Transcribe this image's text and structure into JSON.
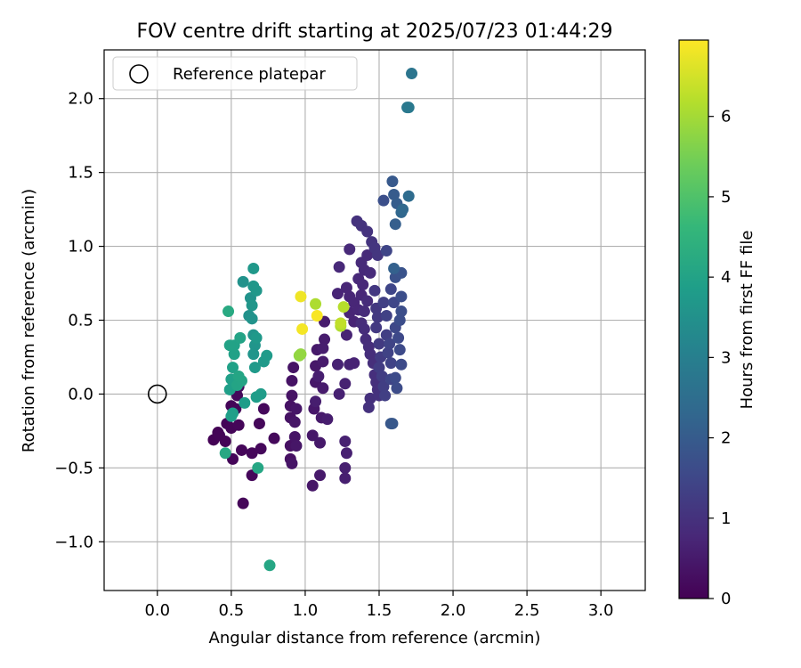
{
  "chart_data": {
    "type": "scatter",
    "title": "FOV centre drift starting at 2025/07/23 01:44:29",
    "xlabel": "Angular distance from reference (arcmin)",
    "ylabel": "Rotation from reference (arcmin)",
    "xlim": [
      -0.36,
      3.3
    ],
    "ylim": [
      -1.33,
      2.33
    ],
    "xticks": [
      0.0,
      0.5,
      1.0,
      1.5,
      2.0,
      2.5,
      3.0
    ],
    "xtick_labels": [
      "0.0",
      "0.5",
      "1.0",
      "1.5",
      "2.0",
      "2.5",
      "3.0"
    ],
    "yticks": [
      -1.0,
      -0.5,
      0.0,
      0.5,
      1.0,
      1.5,
      2.0
    ],
    "ytick_labels": [
      "−1.0",
      "−0.5",
      "0.0",
      "0.5",
      "1.0",
      "1.5",
      "2.0"
    ],
    "grid": true,
    "legend": {
      "placement": "upper-left",
      "entries": [
        "Reference platepar"
      ]
    },
    "reference_point": {
      "x": 0.0,
      "y": 0.0
    },
    "colorbar": {
      "label": "Hours from first FF file",
      "range": [
        0,
        6.95
      ],
      "ticks": [
        0,
        1,
        2,
        3,
        4,
        5,
        6
      ],
      "tick_labels": [
        "0",
        "1",
        "2",
        "3",
        "4",
        "5",
        "6"
      ],
      "colormap": "viridis"
    },
    "points": [
      {
        "x": 0.38,
        "y": -0.31,
        "h": 0.02
      },
      {
        "x": 0.41,
        "y": -0.26,
        "h": 0.03
      },
      {
        "x": 0.42,
        "y": -0.28,
        "h": 0.05
      },
      {
        "x": 0.46,
        "y": -0.32,
        "h": 0.05
      },
      {
        "x": 0.47,
        "y": -0.2,
        "h": 0.06
      },
      {
        "x": 0.5,
        "y": -0.23,
        "h": 0.07
      },
      {
        "x": 0.51,
        "y": -0.44,
        "h": 0.08
      },
      {
        "x": 0.5,
        "y": -0.08,
        "h": 0.08
      },
      {
        "x": 0.53,
        "y": -0.1,
        "h": 0.09
      },
      {
        "x": 0.55,
        "y": -0.21,
        "h": 0.1
      },
      {
        "x": 0.57,
        "y": -0.38,
        "h": 0.1
      },
      {
        "x": 0.58,
        "y": -0.74,
        "h": 0.11
      },
      {
        "x": 0.64,
        "y": -0.55,
        "h": 0.12
      },
      {
        "x": 0.64,
        "y": -0.4,
        "h": 0.12
      },
      {
        "x": 0.69,
        "y": -0.2,
        "h": 0.13
      },
      {
        "x": 0.7,
        "y": -0.37,
        "h": 0.14
      },
      {
        "x": 0.72,
        "y": -0.1,
        "h": 0.14
      },
      {
        "x": 0.79,
        "y": -0.3,
        "h": 0.15
      },
      {
        "x": 0.54,
        "y": -0.01,
        "h": 0.16
      },
      {
        "x": 0.55,
        "y": 0.05,
        "h": 0.16
      },
      {
        "x": 0.9,
        "y": -0.44,
        "h": 0.3
      },
      {
        "x": 0.9,
        "y": -0.35,
        "h": 0.32
      },
      {
        "x": 0.9,
        "y": -0.16,
        "h": 0.33
      },
      {
        "x": 0.9,
        "y": -0.08,
        "h": 0.34
      },
      {
        "x": 0.91,
        "y": -0.01,
        "h": 0.35
      },
      {
        "x": 0.91,
        "y": 0.09,
        "h": 0.36
      },
      {
        "x": 0.92,
        "y": 0.18,
        "h": 0.37
      },
      {
        "x": 0.91,
        "y": -0.47,
        "h": 0.38
      },
      {
        "x": 0.93,
        "y": -0.29,
        "h": 0.38
      },
      {
        "x": 0.93,
        "y": -0.19,
        "h": 0.39
      },
      {
        "x": 0.94,
        "y": -0.1,
        "h": 0.4
      },
      {
        "x": 0.94,
        "y": -0.35,
        "h": 0.41
      },
      {
        "x": 1.05,
        "y": -0.62,
        "h": 0.42
      },
      {
        "x": 1.05,
        "y": -0.28,
        "h": 0.43
      },
      {
        "x": 1.06,
        "y": -0.1,
        "h": 0.44
      },
      {
        "x": 1.07,
        "y": 0.08,
        "h": 0.45
      },
      {
        "x": 1.07,
        "y": 0.19,
        "h": 0.46
      },
      {
        "x": 1.08,
        "y": 0.3,
        "h": 0.47
      },
      {
        "x": 1.1,
        "y": -0.33,
        "h": 0.48
      },
      {
        "x": 1.1,
        "y": -0.55,
        "h": 0.49
      },
      {
        "x": 1.11,
        "y": -0.16,
        "h": 0.5
      },
      {
        "x": 1.12,
        "y": 0.04,
        "h": 0.51
      },
      {
        "x": 1.12,
        "y": 0.22,
        "h": 0.52
      },
      {
        "x": 1.13,
        "y": 0.37,
        "h": 0.53
      },
      {
        "x": 1.13,
        "y": 0.49,
        "h": 0.54
      },
      {
        "x": 1.15,
        "y": -0.17,
        "h": 0.55
      },
      {
        "x": 1.12,
        "y": 0.31,
        "h": 0.56
      },
      {
        "x": 1.07,
        "y": -0.05,
        "h": 0.57
      },
      {
        "x": 1.09,
        "y": 0.12,
        "h": 0.58
      },
      {
        "x": 1.27,
        "y": -0.57,
        "h": 0.6
      },
      {
        "x": 1.27,
        "y": -0.5,
        "h": 0.61
      },
      {
        "x": 1.28,
        "y": -0.4,
        "h": 0.62
      },
      {
        "x": 1.27,
        "y": -0.32,
        "h": 0.63
      },
      {
        "x": 1.23,
        "y": 0.0,
        "h": 0.64
      },
      {
        "x": 1.27,
        "y": 0.07,
        "h": 0.65
      },
      {
        "x": 1.22,
        "y": 0.2,
        "h": 0.66
      },
      {
        "x": 1.3,
        "y": 0.2,
        "h": 0.67
      },
      {
        "x": 1.33,
        "y": 0.21,
        "h": 0.68
      },
      {
        "x": 1.28,
        "y": 0.4,
        "h": 0.69
      },
      {
        "x": 1.33,
        "y": 0.49,
        "h": 0.7
      },
      {
        "x": 1.3,
        "y": 0.55,
        "h": 0.71
      },
      {
        "x": 1.22,
        "y": 0.68,
        "h": 0.72
      },
      {
        "x": 1.28,
        "y": 0.72,
        "h": 0.73
      },
      {
        "x": 1.3,
        "y": 0.66,
        "h": 0.74
      },
      {
        "x": 1.33,
        "y": 0.62,
        "h": 0.75
      },
      {
        "x": 1.36,
        "y": 0.57,
        "h": 0.76
      },
      {
        "x": 1.38,
        "y": 0.67,
        "h": 0.77
      },
      {
        "x": 1.39,
        "y": 0.74,
        "h": 0.78
      },
      {
        "x": 1.36,
        "y": 0.78,
        "h": 0.79
      },
      {
        "x": 1.23,
        "y": 0.86,
        "h": 0.8
      },
      {
        "x": 1.3,
        "y": 0.98,
        "h": 0.81
      },
      {
        "x": 1.38,
        "y": 0.89,
        "h": 0.82
      },
      {
        "x": 1.4,
        "y": 0.84,
        "h": 0.83
      },
      {
        "x": 1.42,
        "y": 0.94,
        "h": 0.84
      },
      {
        "x": 1.44,
        "y": 0.82,
        "h": 0.85
      },
      {
        "x": 1.42,
        "y": 0.63,
        "h": 0.86
      },
      {
        "x": 1.4,
        "y": 0.56,
        "h": 0.87
      },
      {
        "x": 1.38,
        "y": 0.48,
        "h": 0.88
      },
      {
        "x": 1.4,
        "y": 0.44,
        "h": 0.89
      },
      {
        "x": 1.41,
        "y": 0.37,
        "h": 0.9
      },
      {
        "x": 1.43,
        "y": 0.32,
        "h": 0.91
      },
      {
        "x": 1.44,
        "y": 0.27,
        "h": 0.92
      },
      {
        "x": 1.46,
        "y": 0.21,
        "h": 0.93
      },
      {
        "x": 1.47,
        "y": 0.13,
        "h": 0.94
      },
      {
        "x": 1.48,
        "y": 0.08,
        "h": 0.95
      },
      {
        "x": 1.49,
        "y": 0.03,
        "h": 0.96
      },
      {
        "x": 1.44,
        "y": -0.03,
        "h": 0.97
      },
      {
        "x": 1.43,
        "y": -0.09,
        "h": 0.98
      },
      {
        "x": 1.5,
        "y": -0.01,
        "h": 0.99
      },
      {
        "x": 1.35,
        "y": 1.17,
        "h": 1.0
      },
      {
        "x": 1.38,
        "y": 1.14,
        "h": 1.02
      },
      {
        "x": 1.42,
        "y": 1.1,
        "h": 1.04
      },
      {
        "x": 1.45,
        "y": 1.03,
        "h": 1.06
      },
      {
        "x": 1.47,
        "y": 0.99,
        "h": 1.08
      },
      {
        "x": 1.49,
        "y": 0.94,
        "h": 1.1
      },
      {
        "x": 1.47,
        "y": 0.7,
        "h": 1.12
      },
      {
        "x": 1.48,
        "y": 0.58,
        "h": 1.14
      },
      {
        "x": 1.49,
        "y": 0.52,
        "h": 1.16
      },
      {
        "x": 1.48,
        "y": 0.45,
        "h": 1.18
      },
      {
        "x": 1.5,
        "y": 0.34,
        "h": 1.2
      },
      {
        "x": 1.51,
        "y": 0.25,
        "h": 1.22
      },
      {
        "x": 1.5,
        "y": 0.18,
        "h": 1.24
      },
      {
        "x": 1.52,
        "y": 0.12,
        "h": 1.26
      },
      {
        "x": 1.53,
        "y": 0.05,
        "h": 1.28
      },
      {
        "x": 1.54,
        "y": -0.01,
        "h": 1.3
      },
      {
        "x": 1.55,
        "y": 0.4,
        "h": 1.32
      },
      {
        "x": 1.53,
        "y": 0.62,
        "h": 1.34
      },
      {
        "x": 1.55,
        "y": 0.53,
        "h": 1.36
      },
      {
        "x": 1.56,
        "y": 0.28,
        "h": 1.38
      },
      {
        "x": 1.58,
        "y": 0.21,
        "h": 1.4
      },
      {
        "x": 1.57,
        "y": 0.34,
        "h": 1.42
      },
      {
        "x": 1.58,
        "y": 0.1,
        "h": 1.44
      },
      {
        "x": 1.55,
        "y": 0.97,
        "h": 1.46
      },
      {
        "x": 1.58,
        "y": 0.71,
        "h": 1.48
      },
      {
        "x": 1.6,
        "y": 0.62,
        "h": 1.5
      },
      {
        "x": 1.61,
        "y": 0.45,
        "h": 1.52
      },
      {
        "x": 1.63,
        "y": 0.38,
        "h": 1.54
      },
      {
        "x": 1.64,
        "y": 0.3,
        "h": 1.56
      },
      {
        "x": 1.65,
        "y": 0.2,
        "h": 1.58
      },
      {
        "x": 1.61,
        "y": 0.11,
        "h": 1.6
      },
      {
        "x": 1.62,
        "y": 0.04,
        "h": 1.62
      },
      {
        "x": 1.64,
        "y": 0.5,
        "h": 1.64
      },
      {
        "x": 1.65,
        "y": 0.56,
        "h": 1.66
      },
      {
        "x": 1.65,
        "y": 0.66,
        "h": 1.68
      },
      {
        "x": 1.53,
        "y": 1.31,
        "h": 1.7
      },
      {
        "x": 1.61,
        "y": 0.79,
        "h": 1.75
      },
      {
        "x": 1.65,
        "y": 0.82,
        "h": 1.8
      },
      {
        "x": 1.58,
        "y": -0.2,
        "h": 1.9
      },
      {
        "x": 1.59,
        "y": -0.2,
        "h": 1.92
      },
      {
        "x": 1.59,
        "y": 1.44,
        "h": 1.95
      },
      {
        "x": 1.6,
        "y": 1.35,
        "h": 2.0
      },
      {
        "x": 1.62,
        "y": 1.29,
        "h": 2.05
      },
      {
        "x": 1.61,
        "y": 1.15,
        "h": 2.1
      },
      {
        "x": 1.6,
        "y": 0.85,
        "h": 2.15
      },
      {
        "x": 1.65,
        "y": 1.23,
        "h": 2.3
      },
      {
        "x": 1.66,
        "y": 1.25,
        "h": 2.35
      },
      {
        "x": 1.7,
        "y": 1.34,
        "h": 2.45
      },
      {
        "x": 1.72,
        "y": 2.17,
        "h": 2.7
      },
      {
        "x": 1.69,
        "y": 1.94,
        "h": 2.8
      },
      {
        "x": 1.7,
        "y": 1.94,
        "h": 2.82
      },
      {
        "x": 0.62,
        "y": 0.53,
        "h": 3.5
      },
      {
        "x": 0.58,
        "y": 0.76,
        "h": 3.52
      },
      {
        "x": 0.63,
        "y": 0.65,
        "h": 3.54
      },
      {
        "x": 0.64,
        "y": 0.51,
        "h": 3.56
      },
      {
        "x": 0.65,
        "y": 0.4,
        "h": 3.58
      },
      {
        "x": 0.66,
        "y": 0.33,
        "h": 3.6
      },
      {
        "x": 0.65,
        "y": 0.27,
        "h": 3.62
      },
      {
        "x": 0.64,
        "y": 0.6,
        "h": 3.64
      },
      {
        "x": 0.65,
        "y": 0.73,
        "h": 3.66
      },
      {
        "x": 0.67,
        "y": 0.7,
        "h": 3.68
      },
      {
        "x": 0.65,
        "y": 0.85,
        "h": 3.7
      },
      {
        "x": 0.67,
        "y": 0.38,
        "h": 3.72
      },
      {
        "x": 0.66,
        "y": 0.18,
        "h": 3.74
      },
      {
        "x": 0.72,
        "y": 0.22,
        "h": 3.76
      },
      {
        "x": 0.74,
        "y": 0.26,
        "h": 3.78
      },
      {
        "x": 0.7,
        "y": 0.0,
        "h": 3.8
      },
      {
        "x": 0.67,
        "y": -0.02,
        "h": 3.82
      },
      {
        "x": 0.59,
        "y": -0.06,
        "h": 3.84
      },
      {
        "x": 0.51,
        "y": -0.13,
        "h": 3.86
      },
      {
        "x": 0.5,
        "y": -0.15,
        "h": 3.88
      },
      {
        "x": 0.49,
        "y": 0.03,
        "h": 3.9
      },
      {
        "x": 0.5,
        "y": 0.1,
        "h": 3.92
      },
      {
        "x": 0.51,
        "y": 0.18,
        "h": 3.94
      },
      {
        "x": 0.52,
        "y": 0.27,
        "h": 3.96
      },
      {
        "x": 0.52,
        "y": 0.33,
        "h": 3.98
      },
      {
        "x": 0.49,
        "y": 0.33,
        "h": 4.0
      },
      {
        "x": 0.56,
        "y": 0.38,
        "h": 4.02
      },
      {
        "x": 0.54,
        "y": 0.06,
        "h": 4.04
      },
      {
        "x": 0.57,
        "y": 0.09,
        "h": 4.06
      },
      {
        "x": 0.55,
        "y": 0.12,
        "h": 4.08
      },
      {
        "x": 0.68,
        "y": -0.5,
        "h": 4.1
      },
      {
        "x": 0.76,
        "y": -1.16,
        "h": 4.12
      },
      {
        "x": 0.46,
        "y": -0.4,
        "h": 4.14
      },
      {
        "x": 0.48,
        "y": 0.56,
        "h": 4.2
      },
      {
        "x": 0.96,
        "y": 0.26,
        "h": 5.8
      },
      {
        "x": 0.97,
        "y": 0.27,
        "h": 5.82
      },
      {
        "x": 1.07,
        "y": 0.61,
        "h": 6.1
      },
      {
        "x": 1.24,
        "y": 0.46,
        "h": 6.15
      },
      {
        "x": 1.26,
        "y": 0.59,
        "h": 6.2
      },
      {
        "x": 1.24,
        "y": 0.48,
        "h": 6.3
      },
      {
        "x": 0.97,
        "y": 0.66,
        "h": 6.8
      },
      {
        "x": 0.98,
        "y": 0.44,
        "h": 6.85
      },
      {
        "x": 1.08,
        "y": 0.53,
        "h": 6.9
      }
    ]
  }
}
